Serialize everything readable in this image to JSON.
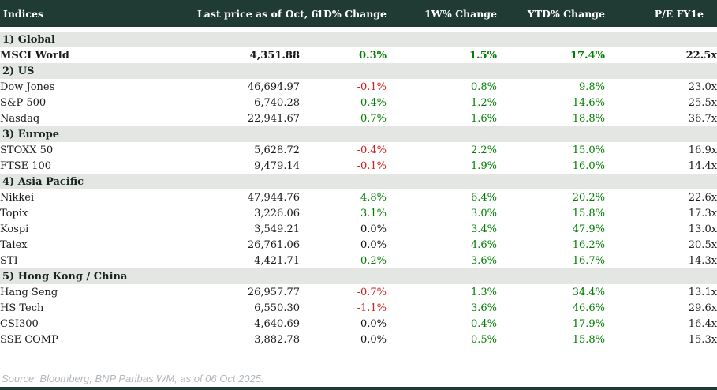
{
  "colors": {
    "header_bg": "#203a34",
    "header_text": "#ffffff",
    "section_bg": "#e3e6e2",
    "row_bg": "#ffffff",
    "text": "#1a1a1a",
    "up": "#008000",
    "down": "#cc2222",
    "flat": "#111111",
    "source_text": "#b2b7bc",
    "bottom_bar": "#203a34"
  },
  "chart_data": {
    "type": "table",
    "title": "Indices",
    "columns": [
      "Indices",
      "Last price as of Oct, 6",
      "1D% Change",
      "1W% Change",
      "YTD% Change",
      "P/E FY1e"
    ],
    "sections": [
      {
        "label": "1) Global",
        "rows": [
          {
            "name": "MSCI World",
            "price": "4,351.88",
            "d1": "0.3%",
            "w1": "1.5%",
            "ytd": "17.4%",
            "pe": "22.5x",
            "emphasis": true
          }
        ]
      },
      {
        "label": "2) US",
        "rows": [
          {
            "name": "Dow Jones",
            "price": "46,694.97",
            "d1": "-0.1%",
            "w1": "0.8%",
            "ytd": "9.8%",
            "pe": "23.0x",
            "emphasis": false
          },
          {
            "name": "S&P 500",
            "price": "6,740.28",
            "d1": "0.4%",
            "w1": "1.2%",
            "ytd": "14.6%",
            "pe": "25.5x",
            "emphasis": false
          },
          {
            "name": "Nasdaq",
            "price": "22,941.67",
            "d1": "0.7%",
            "w1": "1.6%",
            "ytd": "18.8%",
            "pe": "36.7x",
            "emphasis": false
          }
        ]
      },
      {
        "label": "3) Europe",
        "rows": [
          {
            "name": "STOXX 50",
            "price": "5,628.72",
            "d1": "-0.4%",
            "w1": "2.2%",
            "ytd": "15.0%",
            "pe": "16.9x",
            "emphasis": false
          },
          {
            "name": "FTSE 100",
            "price": "9,479.14",
            "d1": "-0.1%",
            "w1": "1.9%",
            "ytd": "16.0%",
            "pe": "14.4x",
            "emphasis": false
          }
        ]
      },
      {
        "label": "4) Asia Pacific",
        "rows": [
          {
            "name": "Nikkei",
            "price": "47,944.76",
            "d1": "4.8%",
            "w1": "6.4%",
            "ytd": "20.2%",
            "pe": "22.6x",
            "emphasis": false
          },
          {
            "name": "Topix",
            "price": "3,226.06",
            "d1": "3.1%",
            "w1": "3.0%",
            "ytd": "15.8%",
            "pe": "17.3x",
            "emphasis": false
          },
          {
            "name": "Kospi",
            "price": "3,549.21",
            "d1": "0.0%",
            "w1": "3.4%",
            "ytd": "47.9%",
            "pe": "13.0x",
            "emphasis": false
          },
          {
            "name": "Taiex",
            "price": "26,761.06",
            "d1": "0.0%",
            "w1": "4.6%",
            "ytd": "16.2%",
            "pe": "20.5x",
            "emphasis": false
          },
          {
            "name": "STI",
            "price": "4,421.71",
            "d1": "0.2%",
            "w1": "3.6%",
            "ytd": "16.7%",
            "pe": "14.3x",
            "emphasis": false
          }
        ]
      },
      {
        "label": "5) Hong Kong / China",
        "rows": [
          {
            "name": "Hang Seng",
            "price": "26,957.77",
            "d1": "-0.7%",
            "w1": "1.3%",
            "ytd": "34.4%",
            "pe": "13.1x",
            "emphasis": false
          },
          {
            "name": "HS Tech",
            "price": "6,550.30",
            "d1": "-1.1%",
            "w1": "3.6%",
            "ytd": "46.6%",
            "pe": "29.6x",
            "emphasis": false
          },
          {
            "name": "CSI300",
            "price": "4,640.69",
            "d1": "0.0%",
            "w1": "0.4%",
            "ytd": "17.9%",
            "pe": "16.4x",
            "emphasis": false
          },
          {
            "name": "SSE COMP",
            "price": "3,882.78",
            "d1": "0.0%",
            "w1": "0.5%",
            "ytd": "15.8%",
            "pe": "15.3x",
            "emphasis": false
          }
        ]
      }
    ]
  },
  "footer": {
    "source": "Source: Bloomberg, BNP Paribas WM, as of 06 Oct 2025."
  }
}
